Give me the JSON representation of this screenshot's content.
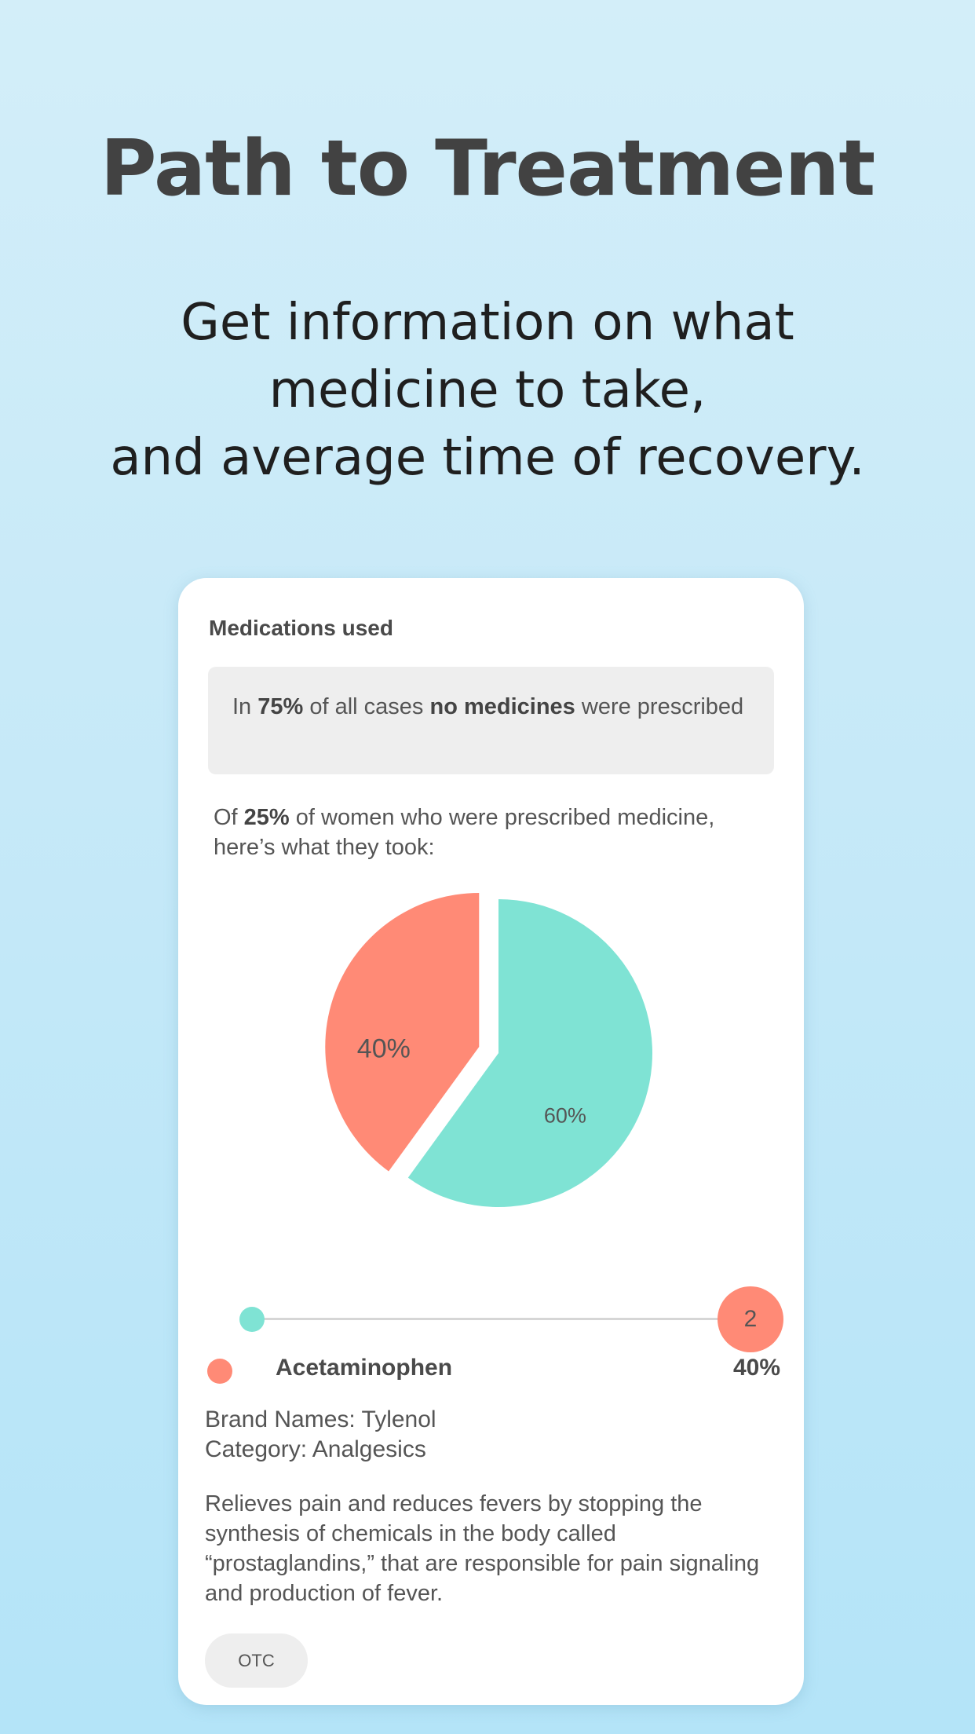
{
  "header": {
    "title": "Path to Treatment",
    "subtitle_lines": [
      "Get information on what",
      "medicine to take,",
      "and average time of recovery."
    ]
  },
  "card": {
    "title": "Medications used",
    "notice": {
      "prefix": "In ",
      "percent": "75%",
      "middle": " of all cases ",
      "emphasis": "no medicines",
      "suffix": " were prescribed"
    },
    "intro": {
      "prefix": "Of ",
      "percent": "25%",
      "suffix": " of women who were prescribed medicine, here’s what they took:"
    },
    "slider": {
      "value_label": "2",
      "value": 2
    },
    "medication": {
      "name": "Acetaminophen",
      "percent": "40%",
      "brand_line": "Brand Names:  Tylenol",
      "category_line": "Category:  Analgesics",
      "description": "Relieves pain and reduces fevers by stopping the synthesis of chemicals in the body called “prostaglandins,” that are responsible for pain signaling and production of fever.",
      "badge": "OTC"
    }
  },
  "colors": {
    "accent_coral": "#ff8a76",
    "accent_teal": "#7fe3d4",
    "title_text": "#424242"
  },
  "chart_data": {
    "type": "pie",
    "slices": [
      {
        "label": "40%",
        "value": 40,
        "color": "#ff8a76",
        "exploded": true
      },
      {
        "label": "60%",
        "value": 60,
        "color": "#7fe3d4",
        "exploded": false
      }
    ]
  }
}
